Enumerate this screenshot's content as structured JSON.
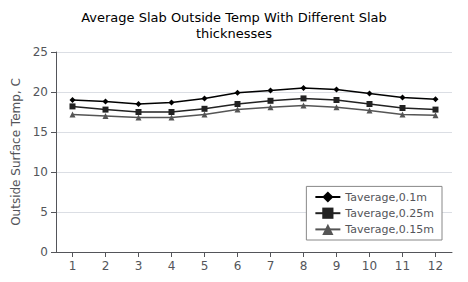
{
  "chart_data": {
    "type": "line",
    "title": "Average Slab Outside Temp With Different Slab\nthicknesses",
    "ylabel": "Outside Surface Temp, C",
    "x": [
      1,
      2,
      3,
      4,
      5,
      6,
      7,
      8,
      9,
      10,
      11,
      12
    ],
    "xlim": [
      0.5,
      12.5
    ],
    "xticks": [
      1,
      2,
      3,
      4,
      5,
      6,
      7,
      8,
      9,
      10,
      11,
      12
    ],
    "ylim": [
      0,
      25
    ],
    "yticks": [
      0,
      5,
      10,
      15,
      20,
      25
    ],
    "grid": true,
    "legend": "lower right",
    "series": [
      {
        "name": "Taverage,0.1m",
        "color": "#000000",
        "marker": "diamond",
        "values": [
          19.0,
          18.8,
          18.5,
          18.7,
          19.2,
          19.9,
          20.2,
          20.5,
          20.3,
          19.8,
          19.3,
          19.1
        ]
      },
      {
        "name": "Taverage,0.25m",
        "color": "#222222",
        "marker": "square",
        "values": [
          18.2,
          17.8,
          17.5,
          17.5,
          17.9,
          18.5,
          18.9,
          19.2,
          19.0,
          18.5,
          18.0,
          17.8
        ]
      },
      {
        "name": "Taverage,0.15m",
        "color": "#555555",
        "marker": "triangle",
        "values": [
          17.2,
          17.0,
          16.8,
          16.8,
          17.2,
          17.8,
          18.1,
          18.3,
          18.1,
          17.7,
          17.2,
          17.1
        ]
      }
    ]
  }
}
